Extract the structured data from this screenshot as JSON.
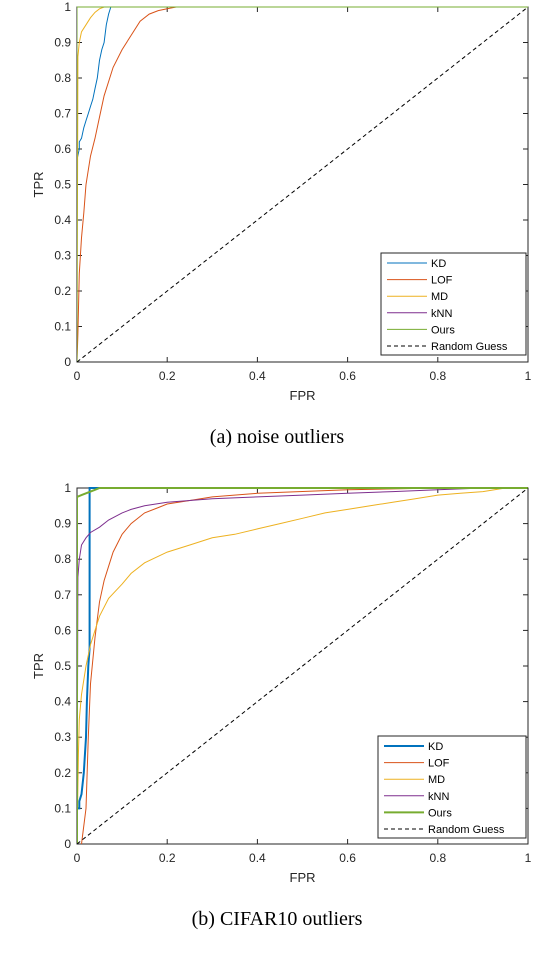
{
  "chart_data": [
    {
      "type": "line",
      "caption": "(a) noise outliers",
      "xlabel": "FPR",
      "ylabel": "TPR",
      "xlim": [
        0,
        1
      ],
      "ylim": [
        0,
        1
      ],
      "xticks": [
        "0",
        "0.2",
        "0.4",
        "0.6",
        "0.8",
        "1"
      ],
      "yticks": [
        "0",
        "0.1",
        "0.2",
        "0.3",
        "0.4",
        "0.5",
        "0.6",
        "0.7",
        "0.8",
        "0.9",
        "1"
      ],
      "grid": false,
      "legend_position": "bottom-right",
      "series": [
        {
          "name": "KD",
          "color": "#0072BD",
          "style": "solid",
          "width": 1,
          "x": [
            0,
            0,
            0.005,
            0.005,
            0.01,
            0.015,
            0.02,
            0.025,
            0.03,
            0.035,
            0.04,
            0.045,
            0.05,
            0.055,
            0.06,
            0.065,
            0.07,
            0.075,
            1
          ],
          "y": [
            0,
            0.57,
            0.6,
            0.62,
            0.63,
            0.66,
            0.68,
            0.7,
            0.72,
            0.74,
            0.77,
            0.8,
            0.85,
            0.88,
            0.9,
            0.95,
            0.98,
            1.0,
            1.0
          ]
        },
        {
          "name": "LOF",
          "color": "#D95319",
          "style": "solid",
          "width": 1,
          "x": [
            0,
            0.002,
            0.005,
            0.01,
            0.015,
            0.02,
            0.03,
            0.04,
            0.05,
            0.06,
            0.07,
            0.08,
            0.1,
            0.12,
            0.14,
            0.16,
            0.18,
            0.2,
            0.22,
            1
          ],
          "y": [
            0,
            0.08,
            0.25,
            0.35,
            0.42,
            0.5,
            0.58,
            0.63,
            0.69,
            0.75,
            0.79,
            0.83,
            0.88,
            0.92,
            0.96,
            0.98,
            0.99,
            0.995,
            1.0,
            1.0
          ]
        },
        {
          "name": "MD",
          "color": "#EDB120",
          "style": "solid",
          "width": 1,
          "x": [
            0,
            0.002,
            0.005,
            0.01,
            0.02,
            0.03,
            0.04,
            0.05,
            0.06,
            1
          ],
          "y": [
            0,
            0.86,
            0.9,
            0.93,
            0.95,
            0.97,
            0.985,
            0.995,
            1.0,
            1.0
          ]
        },
        {
          "name": "kNN",
          "color": "#7E2F8E",
          "style": "solid",
          "width": 1,
          "x": [
            0,
            0,
            1
          ],
          "y": [
            0,
            1,
            1
          ]
        },
        {
          "name": "Ours",
          "color": "#77AC30",
          "style": "solid",
          "width": 1,
          "x": [
            0,
            0,
            1
          ],
          "y": [
            0,
            1,
            1
          ]
        },
        {
          "name": "Random Guess",
          "color": "#000000",
          "style": "dashed",
          "width": 1,
          "x": [
            0,
            1
          ],
          "y": [
            0,
            1
          ]
        }
      ]
    },
    {
      "type": "line",
      "caption": "(b) CIFAR10 outliers",
      "xlabel": "FPR",
      "ylabel": "TPR",
      "xlim": [
        0,
        1
      ],
      "ylim": [
        0,
        1
      ],
      "xticks": [
        "0",
        "0.2",
        "0.4",
        "0.6",
        "0.8",
        "1"
      ],
      "yticks": [
        "0",
        "0.1",
        "0.2",
        "0.3",
        "0.4",
        "0.5",
        "0.6",
        "0.7",
        "0.8",
        "0.9",
        "1"
      ],
      "grid": false,
      "legend_position": "bottom-right",
      "series": [
        {
          "name": "KD",
          "color": "#0072BD",
          "style": "solid",
          "width": 2,
          "x": [
            0,
            0,
            0.005,
            0.005,
            0.01,
            0.015,
            0.02,
            0.022,
            0.025,
            0.028,
            0.028,
            0.03,
            1
          ],
          "y": [
            0,
            0.1,
            0.1,
            0.12,
            0.14,
            0.2,
            0.3,
            0.4,
            0.5,
            0.55,
            1.0,
            1.0,
            1.0
          ]
        },
        {
          "name": "LOF",
          "color": "#D95319",
          "style": "solid",
          "width": 1,
          "x": [
            0.01,
            0.02,
            0.025,
            0.03,
            0.04,
            0.05,
            0.06,
            0.07,
            0.08,
            0.1,
            0.12,
            0.15,
            0.18,
            0.2,
            0.25,
            0.3,
            0.4,
            0.6,
            0.8,
            1
          ],
          "y": [
            0,
            0.1,
            0.3,
            0.45,
            0.58,
            0.68,
            0.74,
            0.78,
            0.82,
            0.87,
            0.9,
            0.93,
            0.945,
            0.955,
            0.965,
            0.975,
            0.985,
            0.995,
            1.0,
            1.0
          ]
        },
        {
          "name": "MD",
          "color": "#EDB120",
          "style": "solid",
          "width": 1,
          "x": [
            0,
            0.003,
            0.005,
            0.01,
            0.02,
            0.03,
            0.04,
            0.05,
            0.07,
            0.1,
            0.12,
            0.15,
            0.2,
            0.25,
            0.3,
            0.35,
            0.4,
            0.45,
            0.5,
            0.55,
            0.6,
            0.65,
            0.7,
            0.75,
            0.8,
            0.85,
            0.9,
            0.95,
            1
          ],
          "y": [
            0,
            0.25,
            0.35,
            0.42,
            0.5,
            0.56,
            0.6,
            0.64,
            0.69,
            0.73,
            0.76,
            0.79,
            0.82,
            0.84,
            0.86,
            0.87,
            0.885,
            0.9,
            0.915,
            0.93,
            0.94,
            0.95,
            0.96,
            0.97,
            0.98,
            0.985,
            0.99,
            1.0,
            1.0
          ]
        },
        {
          "name": "kNN",
          "color": "#7E2F8E",
          "style": "solid",
          "width": 1,
          "x": [
            0,
            0.002,
            0.005,
            0.01,
            0.02,
            0.03,
            0.05,
            0.07,
            0.1,
            0.12,
            0.15,
            0.2,
            0.3,
            0.4,
            0.5,
            0.6,
            0.7,
            0.8,
            0.9,
            1
          ],
          "y": [
            0,
            0.75,
            0.8,
            0.84,
            0.86,
            0.875,
            0.89,
            0.91,
            0.93,
            0.94,
            0.95,
            0.96,
            0.97,
            0.975,
            0.98,
            0.985,
            0.99,
            0.995,
            1.0,
            1.0
          ]
        },
        {
          "name": "Ours",
          "color": "#77AC30",
          "style": "solid",
          "width": 2,
          "x": [
            0,
            0,
            0.01,
            0.02,
            0.03,
            0.04,
            0.05,
            0.07,
            1
          ],
          "y": [
            0,
            0.975,
            0.98,
            0.985,
            0.99,
            0.995,
            1.0,
            1.0,
            1.0
          ]
        },
        {
          "name": "Random Guess",
          "color": "#000000",
          "style": "dashed",
          "width": 1,
          "x": [
            0,
            1
          ],
          "y": [
            0,
            1
          ]
        }
      ]
    }
  ]
}
